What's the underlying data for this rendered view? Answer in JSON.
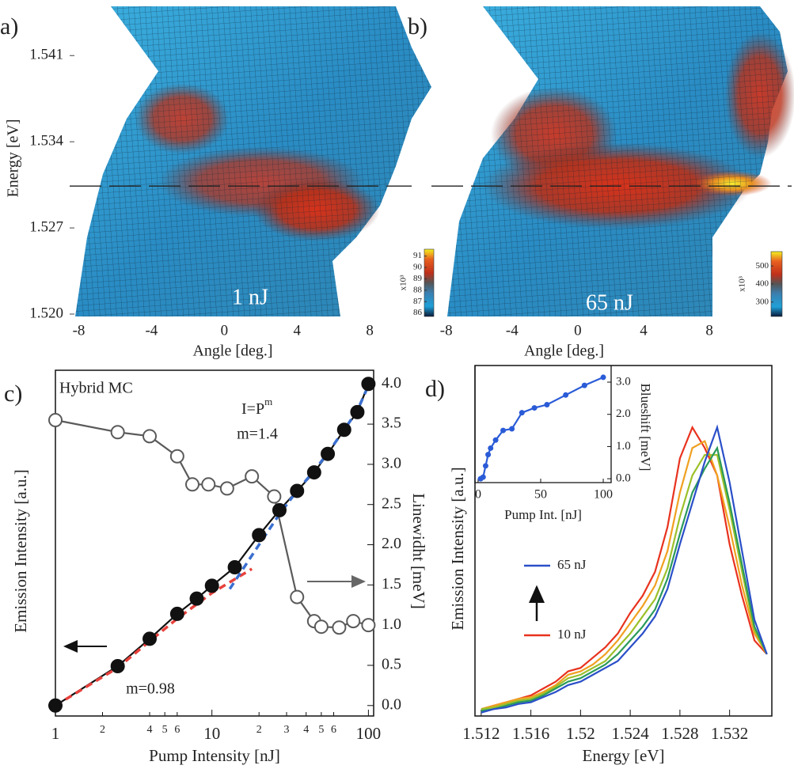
{
  "chart_data": [
    {
      "type": "surface",
      "panel_label": "a)",
      "annotation": "1 nJ",
      "x_label": "Angle [deg.]",
      "y_label": "Energy [eV]",
      "xlim": [
        -8.5,
        10.3
      ],
      "xticks": [
        -8,
        -4,
        0,
        4,
        8
      ],
      "ylim": [
        1.52,
        1.545
      ],
      "yticks": [
        {
          "value": 1.52,
          "label": "1.520"
        },
        1.527,
        1.534,
        1.541
      ],
      "hline": 1.5304,
      "colorbar": {
        "label": "x10³",
        "lim": [
          85.7,
          91.6
        ],
        "ticks": [
          86,
          87,
          88,
          89,
          90,
          91
        ]
      }
    },
    {
      "type": "surface",
      "panel_label": "b)",
      "annotation": "65 nJ",
      "x_label": "Angle [deg.]",
      "xlim": [
        -8.9,
        13
      ],
      "xticks": [
        -8,
        -4,
        0,
        4,
        8
      ],
      "ylim": [
        1.52,
        1.545
      ],
      "hline": 1.5304,
      "colorbar": {
        "label": "x10³",
        "lim": [
          220,
          580
        ],
        "ticks": [
          300,
          400,
          500
        ]
      }
    },
    {
      "type": "line",
      "panel_label": "c)",
      "annotations": [
        "Hybrid MC",
        "m=1.4",
        "m=0.98"
      ],
      "formula": "I=P",
      "formula_exponent": "m",
      "x_label": "Pump Intensity [nJ]",
      "y_label": "Emission Intensity [a.u.]",
      "y2_label": "Linewidht [meV]",
      "x_log": true,
      "xlim": [
        1,
        108
      ],
      "xticks": [
        1,
        10,
        100
      ],
      "minor_xticks": [
        2,
        4,
        5,
        6,
        {
          "value": 20,
          "label": "2"
        },
        {
          "value": 30,
          "label": "3"
        },
        {
          "value": 40,
          "label": "4"
        },
        {
          "value": 50,
          "label": "5"
        },
        {
          "value": 60,
          "label": "6"
        }
      ],
      "ylim": [
        -0.13,
        4.17
      ],
      "y2lim": [
        -0.13,
        4.17
      ],
      "y2ticks": [
        {
          "value": 0,
          "label": "0.0"
        },
        0.5,
        {
          "value": 1,
          "label": "1.0"
        },
        1.5,
        {
          "value": 2,
          "label": "2.0"
        },
        2.5,
        {
          "value": 3,
          "label": "3.0"
        },
        3.5,
        {
          "value": 4,
          "label": "4.0"
        }
      ],
      "series": [
        {
          "color": "#111111",
          "marker": "filled",
          "x": [
            1,
            2.5,
            4,
            6,
            8,
            10,
            14,
            20,
            27,
            35,
            45,
            55,
            70,
            85,
            100
          ],
          "values": [
            0,
            0.49,
            0.83,
            1.14,
            1.33,
            1.49,
            1.72,
            2.12,
            2.43,
            2.67,
            2.9,
            3.13,
            3.43,
            3.65,
            4.0
          ]
        },
        {
          "color": "#5a5a5a",
          "marker": "open",
          "axis": "y2",
          "x": [
            1,
            2.5,
            4,
            6,
            7.5,
            9.5,
            12.5,
            18,
            25,
            35,
            45,
            50,
            65,
            80,
            100
          ],
          "values": [
            3.55,
            3.4,
            3.35,
            3.1,
            2.75,
            2.75,
            2.7,
            2.85,
            2.6,
            1.35,
            1.05,
            0.98,
            0.97,
            1.05,
            1.0
          ]
        },
        {
          "color": "#e8413c",
          "dash": true,
          "x": [
            1,
            2.5,
            4,
            6,
            10,
            18
          ],
          "values": [
            0,
            0.47,
            0.8,
            1.08,
            1.4,
            1.7
          ]
        },
        {
          "color": "#3a6fd0",
          "dash": true,
          "x": [
            13,
            20,
            27,
            35,
            45,
            55,
            70,
            85,
            100
          ],
          "values": [
            1.45,
            2.0,
            2.38,
            2.67,
            2.92,
            3.14,
            3.43,
            3.67,
            3.98
          ]
        }
      ]
    },
    {
      "type": "line",
      "panel_label": "d)",
      "x_label": "Energy [eV]",
      "y_label": "Emission Intensity [a.u.]",
      "xlim": [
        1.5115,
        1.5354
      ],
      "xticks": [
        1.512,
        1.516,
        1.52,
        1.524,
        1.528,
        1.532
      ],
      "ylim": [
        0,
        1.02
      ],
      "x": [
        1.512,
        1.513,
        1.514,
        1.515,
        1.516,
        1.517,
        1.518,
        1.519,
        1.52,
        1.521,
        1.522,
        1.523,
        1.524,
        1.525,
        1.526,
        1.527,
        1.528,
        1.529,
        1.53,
        1.531,
        1.532,
        1.533,
        1.534,
        1.535
      ],
      "series": [
        {
          "name": "10 nJ",
          "color": "#e8321e",
          "values": [
            0.02,
            0.03,
            0.04,
            0.05,
            0.06,
            0.08,
            0.1,
            0.13,
            0.14,
            0.17,
            0.2,
            0.24,
            0.3,
            0.35,
            0.42,
            0.55,
            0.75,
            0.84,
            0.78,
            0.7,
            0.5,
            0.35,
            0.22,
            0.18
          ]
        },
        {
          "color": "#f0a020",
          "values": [
            0.02,
            0.03,
            0.04,
            0.05,
            0.055,
            0.07,
            0.09,
            0.12,
            0.13,
            0.15,
            0.18,
            0.22,
            0.27,
            0.32,
            0.38,
            0.48,
            0.65,
            0.78,
            0.8,
            0.7,
            0.55,
            0.38,
            0.24,
            0.18
          ]
        },
        {
          "color": "#9cc02a",
          "values": [
            0.02,
            0.025,
            0.035,
            0.045,
            0.05,
            0.065,
            0.085,
            0.11,
            0.12,
            0.14,
            0.16,
            0.2,
            0.24,
            0.29,
            0.34,
            0.43,
            0.58,
            0.7,
            0.76,
            0.76,
            0.6,
            0.42,
            0.25,
            0.18
          ]
        },
        {
          "color": "#2a9a5a",
          "values": [
            0.015,
            0.02,
            0.03,
            0.04,
            0.045,
            0.06,
            0.08,
            0.1,
            0.11,
            0.13,
            0.15,
            0.18,
            0.22,
            0.26,
            0.31,
            0.4,
            0.53,
            0.65,
            0.72,
            0.78,
            0.62,
            0.44,
            0.26,
            0.18
          ]
        },
        {
          "name": "65 nJ",
          "color": "#2a4fc8",
          "values": [
            0.01,
            0.02,
            0.025,
            0.035,
            0.04,
            0.055,
            0.07,
            0.09,
            0.1,
            0.12,
            0.14,
            0.16,
            0.2,
            0.24,
            0.29,
            0.37,
            0.5,
            0.62,
            0.74,
            0.84,
            0.68,
            0.48,
            0.28,
            0.18
          ]
        }
      ],
      "inset": {
        "x_label": "Pump Int. [nJ]",
        "y_label": "Blueshift [meV]",
        "color": "#2a5bd7",
        "xlim": [
          -2.5,
          106.3
        ],
        "xticks": [
          0,
          50,
          100
        ],
        "ylim": [
          -0.12,
          3.32
        ],
        "yticks": [
          {
            "value": 0,
            "label": "0.0"
          },
          {
            "value": 1,
            "label": "1.0"
          },
          {
            "value": 2,
            "label": "2.0"
          },
          {
            "value": 3,
            "label": "3.0"
          }
        ],
        "x": [
          2,
          4,
          6,
          8,
          10,
          14,
          20,
          27,
          35,
          45,
          55,
          70,
          85,
          100
        ],
        "values": [
          0,
          0.05,
          0.4,
          0.75,
          0.95,
          1.2,
          1.5,
          1.55,
          2.05,
          2.2,
          2.3,
          2.6,
          2.9,
          3.15
        ]
      }
    }
  ]
}
